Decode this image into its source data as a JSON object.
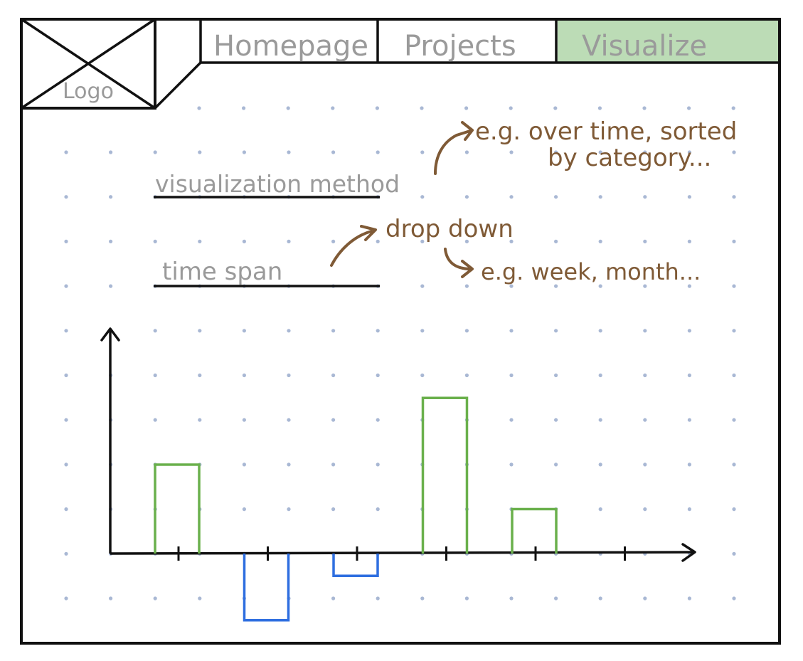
{
  "nav": {
    "logo_label": "Logo",
    "tabs": [
      {
        "label": "Homepage",
        "active": false
      },
      {
        "label": "Projects",
        "active": false
      },
      {
        "label": "Visualize",
        "active": true
      }
    ]
  },
  "form": {
    "visualization_method_label": "visualization method",
    "time_span_label": "time span"
  },
  "annotations": {
    "method_note_line1": "e.g. over time, sorted",
    "method_note_line2": "by category...",
    "dropdown_note": "drop down",
    "dropdown_example": "e.g. week, month..."
  },
  "chart_data": {
    "type": "bar",
    "categories": [
      "",
      "",
      "",
      "",
      ""
    ],
    "values": [
      2,
      -1.5,
      -0.5,
      3.5,
      1
    ],
    "xlabel": "",
    "ylabel": "",
    "ylim": [
      -2,
      5
    ],
    "grid": false
  },
  "colors": {
    "ink": "#111111",
    "pencil": "#9a9a9a",
    "note": "#7f5a36",
    "positive": "#6ab04c",
    "negative": "#2f6fe0",
    "active_tab": "#bcdcb6",
    "dots": "#a9b8d4"
  }
}
